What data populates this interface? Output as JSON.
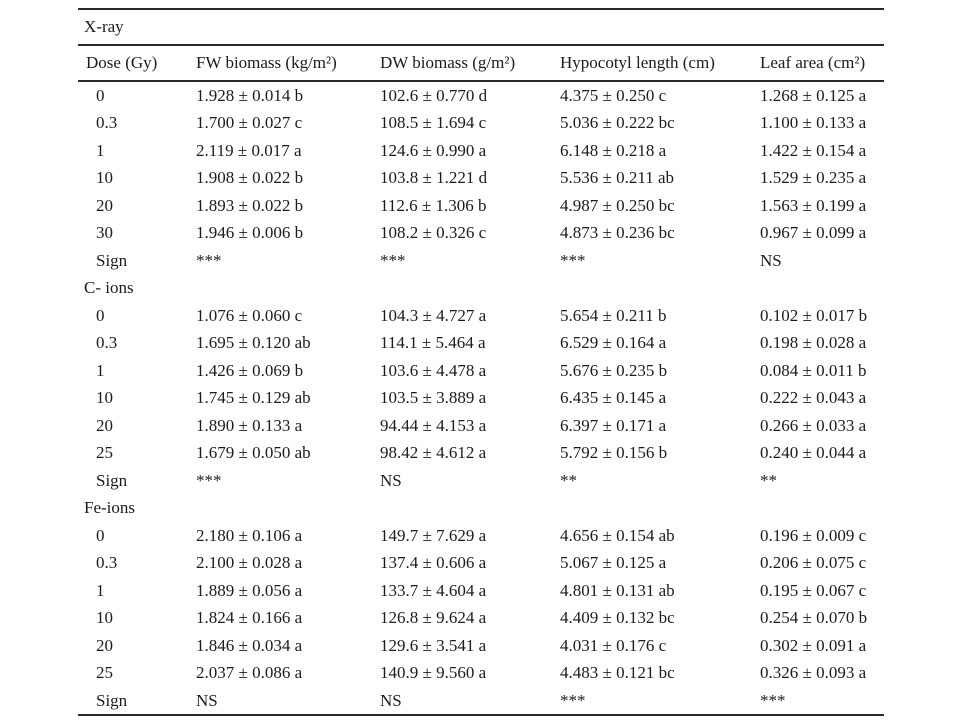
{
  "table": {
    "columns": [
      "Dose (Gy)",
      "FW biomass (kg/m²)",
      "DW biomass (g/m²)",
      "Hypocotyl length (cm)",
      "Leaf area (cm²)"
    ],
    "sections": [
      {
        "title": "X-ray",
        "rows": [
          [
            "0",
            "1.928 ± 0.014 b",
            "102.6 ± 0.770 d",
            "4.375 ± 0.250 c",
            "1.268 ± 0.125 a"
          ],
          [
            "0.3",
            "1.700 ± 0.027 c",
            "108.5 ± 1.694 c",
            "5.036 ± 0.222 bc",
            "1.100 ± 0.133 a"
          ],
          [
            "1",
            "2.119 ± 0.017 a",
            "124.6 ± 0.990 a",
            "6.148 ± 0.218 a",
            "1.422 ± 0.154 a"
          ],
          [
            "10",
            "1.908 ± 0.022 b",
            "103.8 ± 1.221 d",
            "5.536 ± 0.211 ab",
            "1.529 ± 0.235 a"
          ],
          [
            "20",
            "1.893 ± 0.022 b",
            "112.6 ± 1.306 b",
            "4.987 ± 0.250 bc",
            "1.563 ± 0.199 a"
          ],
          [
            "30",
            "1.946 ± 0.006 b",
            "108.2 ± 0.326 c",
            "4.873 ± 0.236 bc",
            "0.967 ± 0.099 a"
          ],
          [
            "Sign",
            "***",
            "***",
            "***",
            "NS"
          ]
        ]
      },
      {
        "title": "C- ions",
        "rows": [
          [
            "0",
            "1.076 ± 0.060 c",
            "104.3 ± 4.727 a",
            "5.654 ± 0.211 b",
            "0.102 ± 0.017 b"
          ],
          [
            "0.3",
            "1.695 ± 0.120 ab",
            "114.1 ± 5.464 a",
            "6.529 ± 0.164 a",
            "0.198 ± 0.028 a"
          ],
          [
            "1",
            "1.426 ± 0.069 b",
            "103.6 ± 4.478 a",
            "5.676 ± 0.235 b",
            "0.084 ± 0.011 b"
          ],
          [
            "10",
            "1.745 ± 0.129 ab",
            "103.5 ± 3.889 a",
            "6.435 ± 0.145 a",
            "0.222 ± 0.043 a"
          ],
          [
            "20",
            "1.890 ± 0.133 a",
            "94.44 ± 4.153 a",
            "6.397 ± 0.171 a",
            "0.266 ± 0.033 a"
          ],
          [
            "25",
            "1.679 ± 0.050 ab",
            "98.42 ± 4.612 a",
            "5.792 ± 0.156 b",
            "0.240 ± 0.044 a"
          ],
          [
            "Sign",
            "***",
            "NS",
            "**",
            "**"
          ]
        ]
      },
      {
        "title": "Fe-ions",
        "rows": [
          [
            "0",
            "2.180 ± 0.106 a",
            "149.7 ± 7.629 a",
            "4.656 ± 0.154 ab",
            "0.196 ± 0.009 c"
          ],
          [
            "0.3",
            "2.100 ± 0.028 a",
            "137.4 ± 0.606 a",
            "5.067 ± 0.125 a",
            "0.206 ± 0.075 c"
          ],
          [
            "1",
            "1.889 ± 0.056 a",
            "133.7 ± 4.604 a",
            "4.801 ± 0.131 ab",
            "0.195 ± 0.067 c"
          ],
          [
            "10",
            "1.824 ± 0.166 a",
            "126.8 ± 9.624 a",
            "4.409 ± 0.132 bc",
            "0.254 ± 0.070 b"
          ],
          [
            "20",
            "1.846 ± 0.034 a",
            "129.6 ± 3.541 a",
            "4.031 ± 0.176 c",
            "0.302 ± 0.091 a"
          ],
          [
            "25",
            "2.037 ± 0.086 a",
            "140.9 ± 9.560 a",
            "4.483 ± 0.121 bc",
            "0.326 ± 0.093 a"
          ],
          [
            "Sign",
            "NS",
            "NS",
            "***",
            "***"
          ]
        ]
      }
    ]
  }
}
